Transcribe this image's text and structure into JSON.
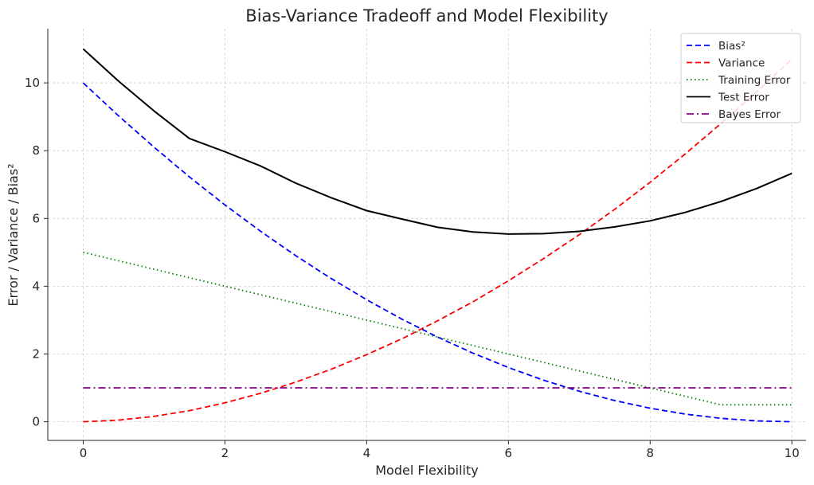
{
  "chart_data": {
    "type": "line",
    "title": "Bias-Variance Tradeoff and Model Flexibility",
    "xlabel": "Model Flexibility",
    "ylabel": "Error / Variance / Bias²",
    "xlim": [
      -0.5,
      10.2
    ],
    "ylim": [
      -0.55,
      11.6
    ],
    "xticks": [
      0,
      2,
      4,
      6,
      8,
      10
    ],
    "yticks": [
      0,
      2,
      4,
      6,
      8,
      10
    ],
    "grid": true,
    "legend_position": "top-right",
    "x": [
      0,
      0.5,
      1,
      1.5,
      2,
      2.5,
      3,
      3.5,
      4,
      4.5,
      5,
      5.5,
      6,
      6.5,
      7,
      7.5,
      8,
      8.5,
      9,
      9.5,
      10
    ],
    "series": [
      {
        "name": "Bias²",
        "color": "#0000ff",
        "dash": "dashed",
        "values": [
          10.0,
          9.025,
          8.1,
          7.225,
          6.4,
          5.625,
          4.9,
          4.225,
          3.6,
          3.025,
          2.5,
          2.025,
          1.6,
          1.225,
          0.9,
          0.625,
          0.4,
          0.225,
          0.1,
          0.025,
          0.0
        ]
      },
      {
        "name": "Variance",
        "color": "#ff0000",
        "dash": "dashed",
        "values": [
          0.0,
          0.05,
          0.16,
          0.33,
          0.56,
          0.84,
          1.17,
          1.55,
          1.98,
          2.45,
          2.98,
          3.54,
          4.16,
          4.82,
          5.52,
          6.27,
          7.07,
          7.91,
          8.8,
          9.73,
          10.7
        ]
      },
      {
        "name": "Training Error",
        "color": "#008000",
        "dash": "dotted",
        "values": [
          5.0,
          4.75,
          4.5,
          4.25,
          4.0,
          3.75,
          3.5,
          3.25,
          3.0,
          2.75,
          2.5,
          2.25,
          2.0,
          1.75,
          1.5,
          1.25,
          1.0,
          0.75,
          0.5,
          0.5,
          0.5
        ]
      },
      {
        "name": "Test Error",
        "color": "#000000",
        "dash": "solid",
        "values": [
          11.0,
          10.05,
          9.17,
          8.36,
          7.97,
          7.55,
          7.04,
          6.61,
          6.23,
          5.98,
          5.74,
          5.6,
          5.54,
          5.55,
          5.62,
          5.75,
          5.93,
          6.18,
          6.5,
          6.88,
          7.33
        ]
      },
      {
        "name": "Bayes Error",
        "color": "#800080",
        "dash": "dashdot",
        "values": [
          1,
          1,
          1,
          1,
          1,
          1,
          1,
          1,
          1,
          1,
          1,
          1,
          1,
          1,
          1,
          1,
          1,
          1,
          1,
          1,
          1
        ]
      }
    ]
  }
}
